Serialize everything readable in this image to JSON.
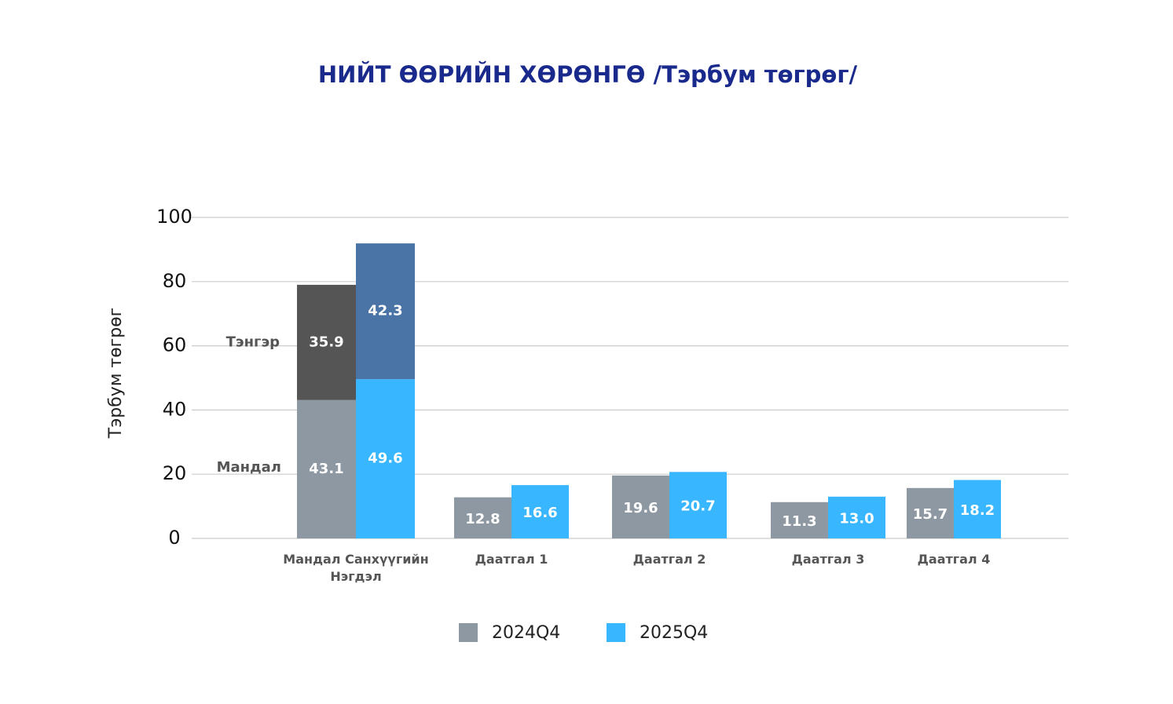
{
  "chart_data": {
    "type": "bar",
    "title": "НИЙТ ӨӨРИЙН ХӨРӨНГӨ /Тэрбум төгрөг/",
    "y_label": "Тэрбум төгрөг",
    "categories": [
      "Мандал Санхүүгийн Нэгдэл",
      "Даатгал 1",
      "Даатгал 2",
      "Даатгал 3",
      "Даатгал 4"
    ],
    "series": [
      {
        "name": "2024Q4",
        "color": "#8e98a2",
        "values": [
          43.1,
          12.8,
          19.6,
          11.3,
          15.7
        ]
      },
      {
        "name": "2025Q4",
        "color": "#38b6ff",
        "values": [
          49.6,
          16.6,
          20.7,
          13,
          18.2
        ],
        "value_labels": [
          "49.6",
          "16.6",
          "20.7",
          "13.0",
          "18.2"
        ]
      }
    ],
    "stack_top": {
      "name": "Тэнгэр",
      "base_name": "Мандал",
      "series": [
        {
          "color": "#555555",
          "values": [
            35.9,
            null,
            null,
            null,
            null
          ]
        },
        {
          "color": "#4a74a6",
          "values": [
            42.3,
            null,
            null,
            null,
            null
          ]
        }
      ]
    },
    "ylim": [
      0,
      100
    ],
    "yticks": [
      0,
      20,
      40,
      60,
      80,
      100
    ],
    "grid": true,
    "legend": "bottom"
  }
}
